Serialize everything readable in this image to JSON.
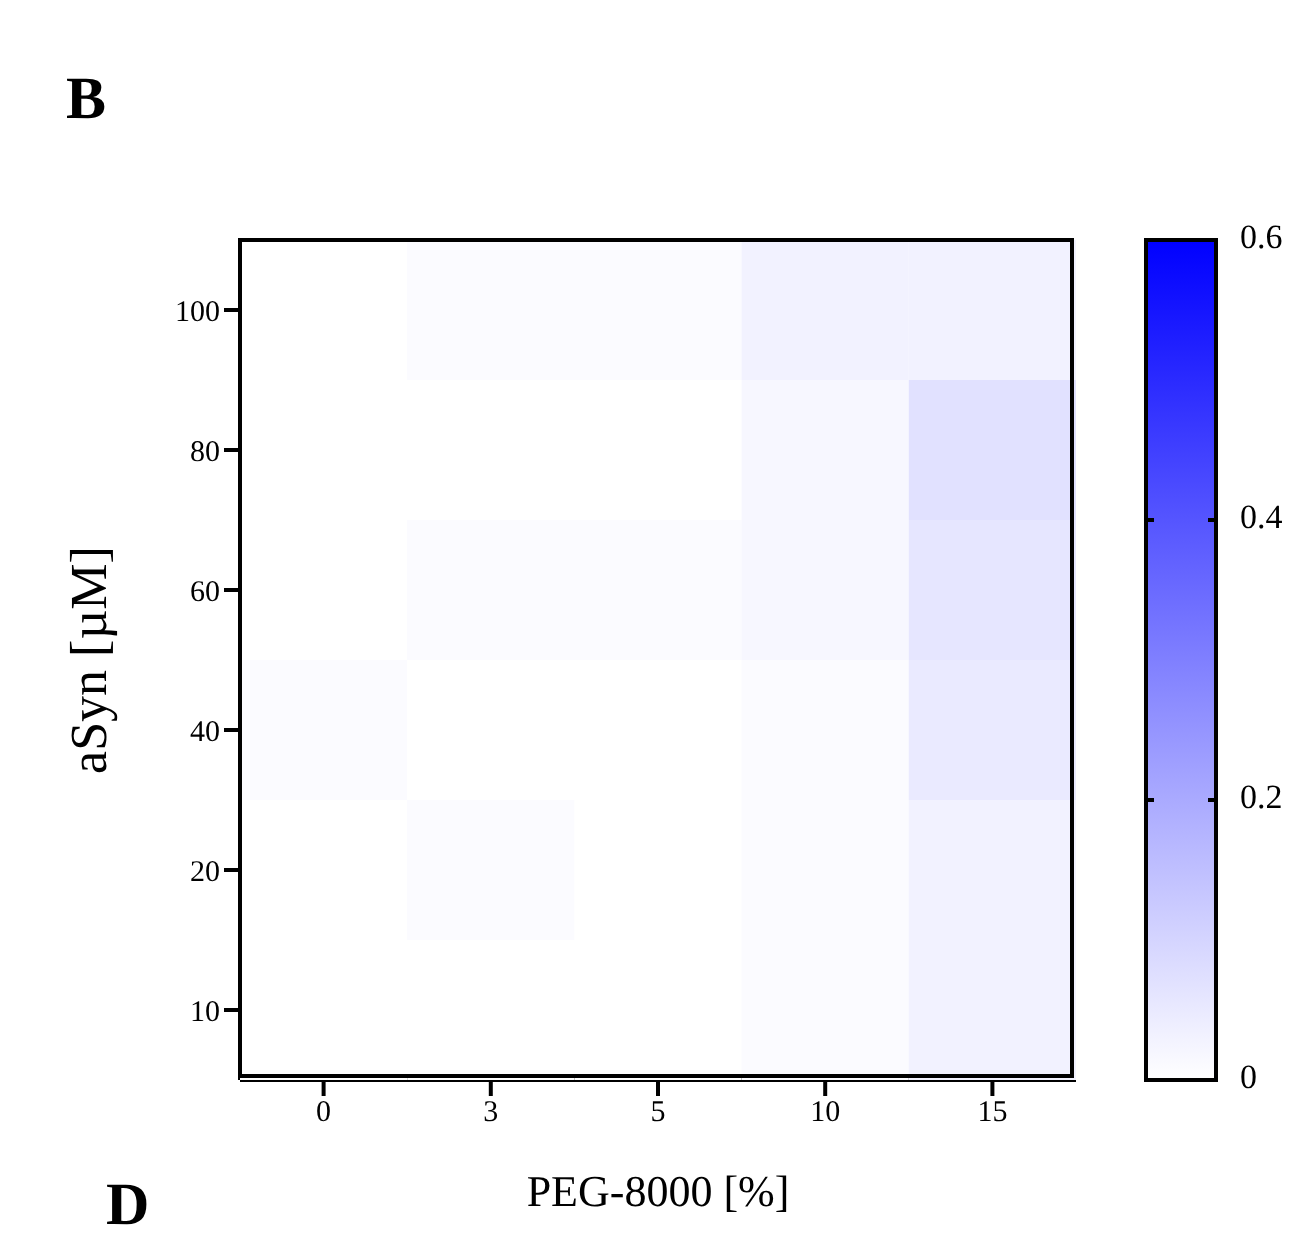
{
  "chart_data": {
    "type": "heatmap",
    "xlabel": "PEG-8000 [%]",
    "ylabel": "aSyn [µM]",
    "annotations": [
      "B",
      "D"
    ],
    "categories": [
      "0",
      "3",
      "5",
      "10",
      "15"
    ],
    "y_categories": [
      "100",
      "80",
      "60",
      "40",
      "20",
      "10"
    ],
    "cells": [
      [
        0.0,
        0.01,
        0.01,
        0.03,
        0.03
      ],
      [
        0.0,
        0.0,
        0.0,
        0.02,
        0.07
      ],
      [
        0.0,
        0.01,
        0.01,
        0.02,
        0.06
      ],
      [
        0.01,
        0.0,
        0.0,
        0.01,
        0.05
      ],
      [
        0.0,
        0.01,
        0.0,
        0.01,
        0.03
      ],
      [
        0.0,
        0.0,
        0.0,
        0.01,
        0.03
      ]
    ],
    "clim": [
      0,
      0.6
    ],
    "cticks": [
      0,
      0.2,
      0.4,
      0.6
    ]
  }
}
